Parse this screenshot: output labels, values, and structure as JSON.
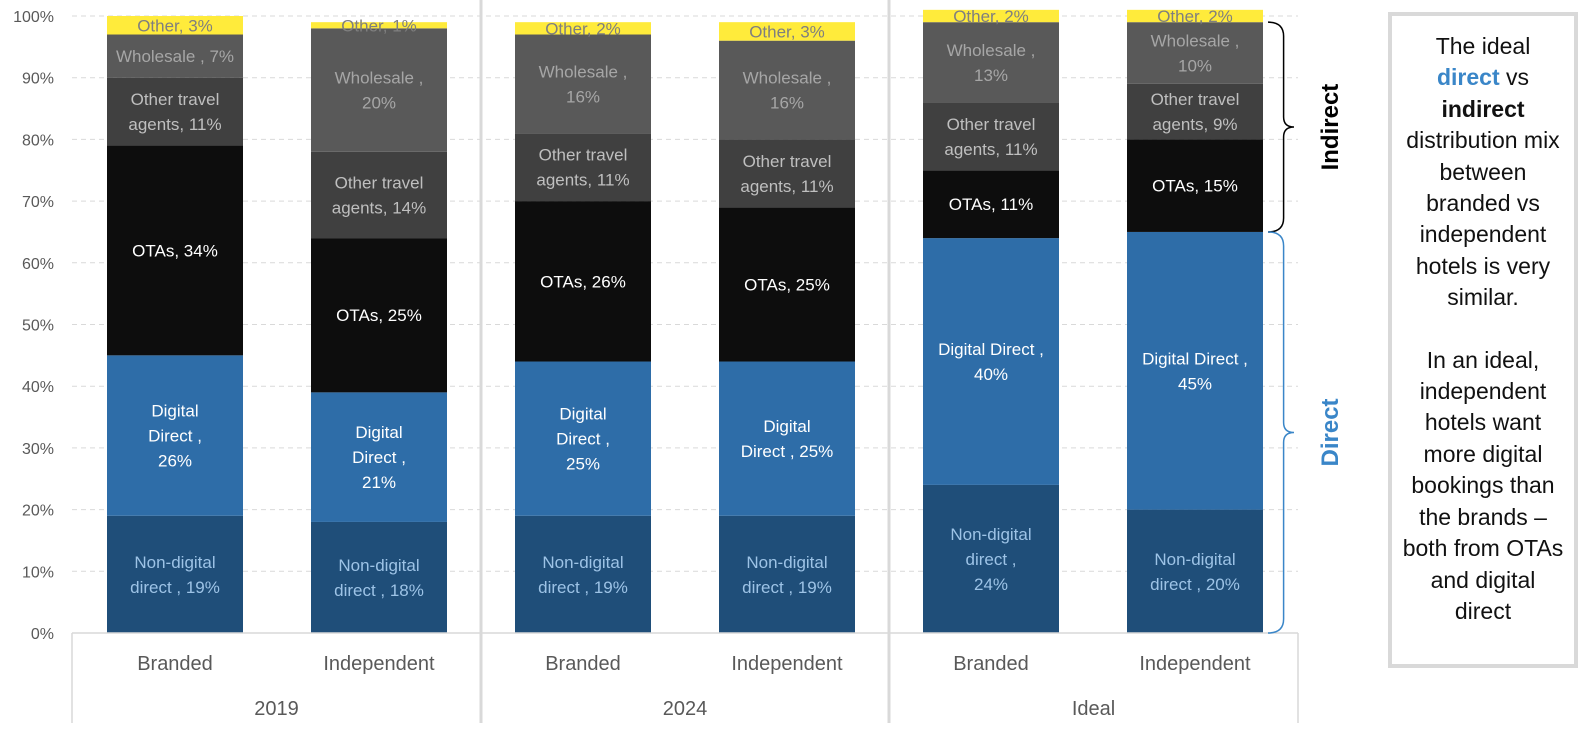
{
  "chart_data": {
    "type": "bar",
    "stacked": true,
    "percent_stacked": true,
    "ylim": [
      0,
      100
    ],
    "y_ticks": [
      "0%",
      "10%",
      "20%",
      "30%",
      "40%",
      "50%",
      "60%",
      "70%",
      "80%",
      "90%",
      "100%"
    ],
    "grid": true,
    "groups": [
      "2019",
      "2024",
      "Ideal"
    ],
    "categories": [
      "Branded",
      "Independent",
      "Branded",
      "Independent",
      "Branded",
      "Independent"
    ],
    "series": [
      {
        "name": "Non-digital direct",
        "color": "#1f4e79",
        "label_color": "#9dc3e6",
        "values": [
          19,
          18,
          19,
          19,
          24,
          20
        ],
        "labels": [
          "Non-digital\ndirect , 19%",
          "Non-digital\ndirect , 18%",
          "Non-digital\ndirect , 19%",
          "Non-digital\ndirect , 19%",
          "Non-digital\ndirect ,\n24%",
          "Non-digital\ndirect , 20%"
        ]
      },
      {
        "name": "Digital Direct",
        "color": "#2e6da8",
        "label_color": "#ffffff",
        "values": [
          26,
          21,
          25,
          25,
          40,
          45
        ],
        "labels": [
          "Digital\nDirect ,\n26%",
          "Digital\nDirect ,\n21%",
          "Digital\nDirect ,\n25%",
          "Digital\nDirect , 25%",
          "Digital Direct ,\n40%",
          "Digital Direct ,\n45%"
        ]
      },
      {
        "name": "OTAs",
        "color": "#0d0d0d",
        "label_color": "#ffffff",
        "values": [
          34,
          25,
          26,
          25,
          11,
          15
        ],
        "labels": [
          "OTAs, 34%",
          "OTAs, 25%",
          "OTAs, 26%",
          "OTAs, 25%",
          "OTAs, 11%",
          "OTAs, 15%"
        ]
      },
      {
        "name": "Other travel agents",
        "color": "#404040",
        "label_color": "#bfbfbf",
        "values": [
          11,
          14,
          11,
          11,
          11,
          9
        ],
        "labels": [
          "Other travel\nagents, 11%",
          "Other travel\nagents, 14%",
          "Other travel\nagents, 11%",
          "Other travel\nagents, 11%",
          "Other travel\nagents, 11%",
          "Other travel\nagents, 9%"
        ]
      },
      {
        "name": "Wholesale",
        "color": "#595959",
        "label_color": "#a6a6a6",
        "values": [
          7,
          20,
          16,
          16,
          13,
          10
        ],
        "labels": [
          "Wholesale , 7%",
          "Wholesale ,\n20%",
          "Wholesale ,\n16%",
          "Wholesale ,\n16%",
          "Wholesale ,\n13%",
          "Wholesale ,\n10%"
        ]
      },
      {
        "name": "Other",
        "color": "#ffeb3b",
        "label_color": "#7f7f7f",
        "values": [
          3,
          1,
          2,
          3,
          2,
          2
        ],
        "labels": [
          "Other, 3%",
          "Other, 1%",
          "Other, 2%",
          "Other, 3%",
          "Other, 2%",
          "Other, 2%"
        ]
      }
    ],
    "braces": [
      {
        "label": "Indirect",
        "color": "#000000"
      },
      {
        "label": "Direct",
        "color": "#3a86c8"
      }
    ]
  },
  "note": {
    "line1_pre": "The ideal",
    "kw_direct": "direct",
    "line_vs": " vs",
    "kw_indirect": "indirect",
    "line_rest": "distribution mix between branded vs independent hotels is very similar.",
    "para2": "In an ideal, independent hotels want more digital bookings than the brands – both from OTAs and digital direct"
  }
}
